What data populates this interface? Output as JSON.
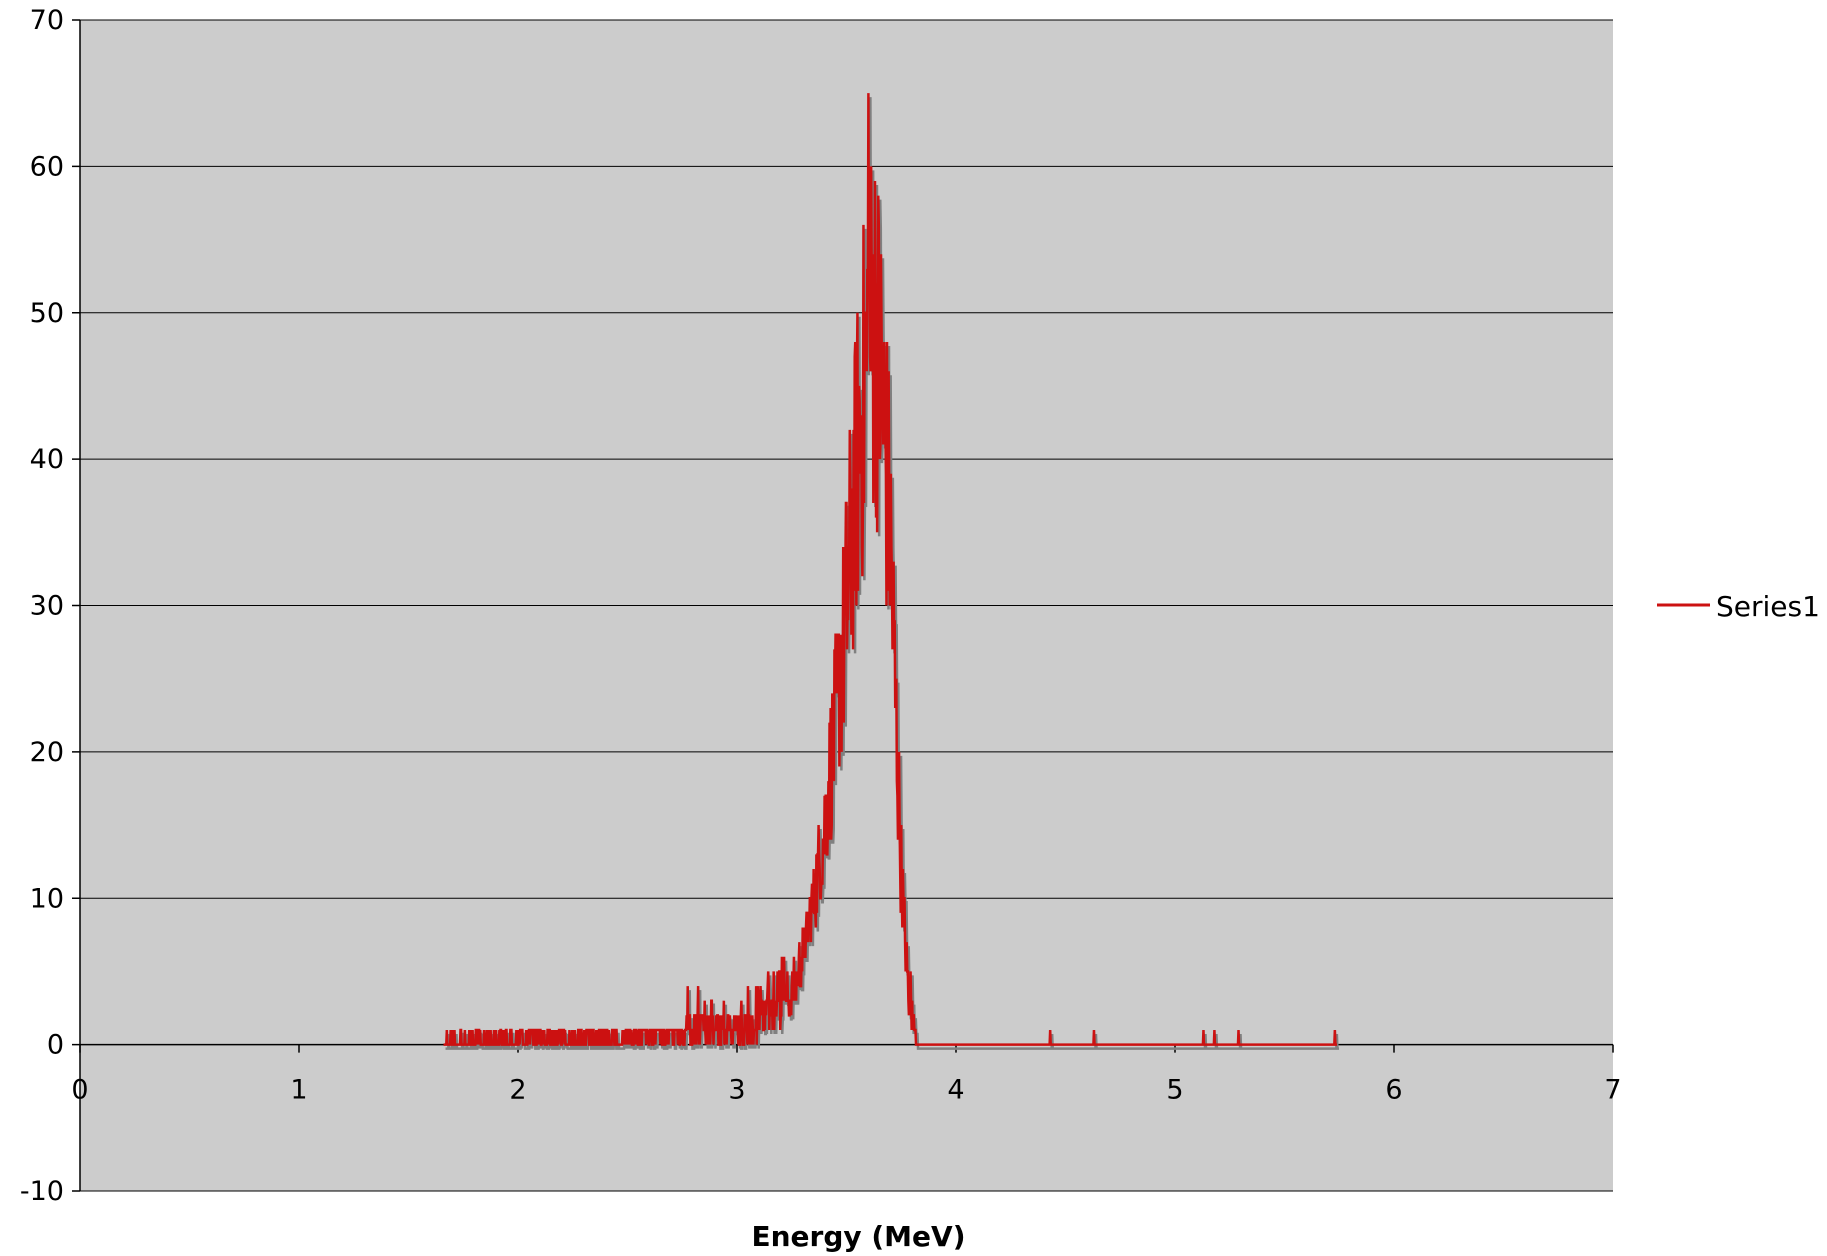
{
  "chart_data": {
    "type": "line",
    "title": "",
    "xlabel": "Energy (MeV)",
    "ylabel": "",
    "xlim": [
      0,
      7
    ],
    "ylim": [
      -10,
      70
    ],
    "x_ticks": [
      0,
      1,
      2,
      3,
      4,
      5,
      6,
      7
    ],
    "y_ticks": [
      -10,
      0,
      10,
      20,
      30,
      40,
      50,
      60,
      70
    ],
    "grid": "horizontal",
    "plot_background": "#cccccc",
    "legend_position": "right",
    "series": [
      {
        "name": "Series1",
        "color": "#cc1111",
        "shadow_color": "#808080",
        "x_range": [
          1.66,
          5.74
        ],
        "envelope": [
          [
            1.66,
            0.2
          ],
          [
            2.0,
            0.4
          ],
          [
            2.5,
            0.5
          ],
          [
            2.9,
            0.8
          ],
          [
            3.0,
            1.0
          ],
          [
            3.1,
            1.5
          ],
          [
            3.2,
            2.5
          ],
          [
            3.25,
            3.5
          ],
          [
            3.3,
            6
          ],
          [
            3.35,
            10
          ],
          [
            3.4,
            15
          ],
          [
            3.45,
            22
          ],
          [
            3.5,
            30
          ],
          [
            3.55,
            40
          ],
          [
            3.6,
            48
          ],
          [
            3.63,
            50
          ],
          [
            3.66,
            45
          ],
          [
            3.7,
            35
          ],
          [
            3.72,
            25
          ],
          [
            3.75,
            12
          ],
          [
            3.78,
            4
          ],
          [
            3.8,
            1
          ],
          [
            3.83,
            0
          ],
          [
            5.74,
            0
          ]
        ],
        "peak": {
          "x": 3.6,
          "y": 65
        },
        "isolated_counts": [
          {
            "x": 4.43,
            "y": 1
          },
          {
            "x": 4.63,
            "y": 1
          },
          {
            "x": 5.13,
            "y": 1
          },
          {
            "x": 5.18,
            "y": 1
          },
          {
            "x": 5.29,
            "y": 1
          },
          {
            "x": 5.73,
            "y": 1
          }
        ]
      }
    ]
  }
}
